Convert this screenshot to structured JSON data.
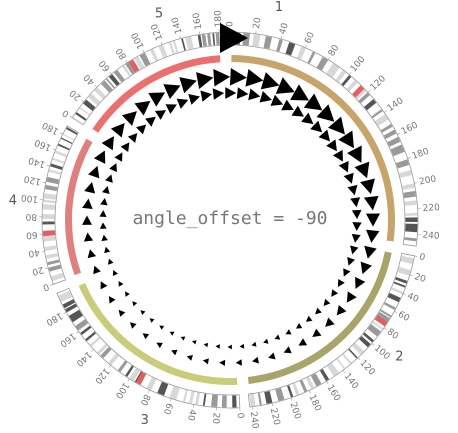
{
  "title": "angle_offset = -90",
  "start_marker": "start-arrow",
  "chromosomes": [
    {
      "id": "1",
      "length": 249,
      "color": "#C7A46A",
      "start_deg": 0,
      "end_deg": 98,
      "ticks": [
        0,
        20,
        40,
        60,
        80,
        100,
        120,
        140,
        160,
        180,
        200,
        220,
        240
      ]
    },
    {
      "id": "2",
      "length": 243,
      "color": "#A7A56A",
      "start_deg": 101,
      "end_deg": 174,
      "ticks": [
        0,
        20,
        40,
        60,
        80,
        100,
        120,
        140,
        160,
        180,
        200,
        220,
        240
      ]
    },
    {
      "id": "3",
      "length": 198,
      "color": "#C9CD7A",
      "start_deg": 177,
      "end_deg": 247,
      "ticks": [
        0,
        20,
        40,
        60,
        80,
        100,
        120,
        140,
        160,
        180
      ]
    },
    {
      "id": "4",
      "length": 191,
      "color": "#E07F7F",
      "start_deg": 250,
      "end_deg": 300,
      "ticks": [
        0,
        20,
        40,
        60,
        80,
        100,
        120,
        140,
        160,
        180
      ]
    },
    {
      "id": "5",
      "length": 181,
      "color": "#EC6F6F",
      "start_deg": 303,
      "end_deg": 357,
      "ticks": [
        0,
        20,
        40,
        60,
        80,
        100,
        120,
        140,
        160,
        180
      ]
    }
  ],
  "colors": {
    "ideogram_border": "#999999",
    "band_dark": "#555555",
    "band_mid": "#999999",
    "band_light": "#d8d8d8",
    "centromere": "#E06060",
    "arrow": "#000000"
  },
  "inner_tracks": [
    {
      "name": "outer-triangle-track",
      "count": 54,
      "min_size": 4,
      "max_size": 12
    },
    {
      "name": "inner-triangle-track",
      "count": 66,
      "min_size": 3,
      "max_size": 8
    }
  ]
}
